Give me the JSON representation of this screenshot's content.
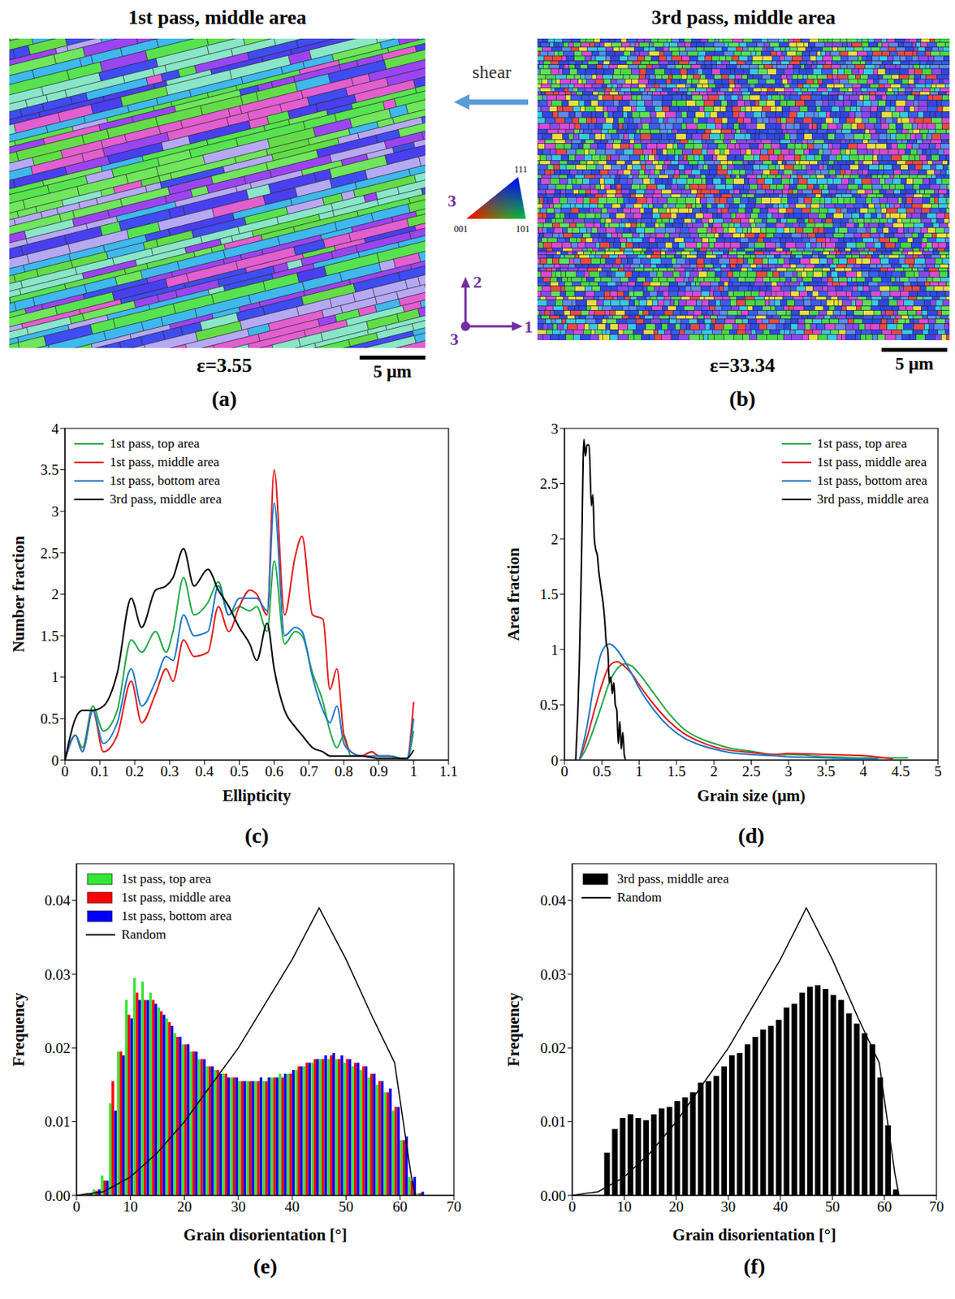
{
  "figure": {
    "maps": [
      {
        "title": "1st pass, middle area",
        "strain": "ε=3.55",
        "scale_bar": "5 μm",
        "panel": "(a)"
      },
      {
        "title": "3rd pass, middle area",
        "strain": "ε=33.34",
        "scale_bar": "5 μm",
        "panel": "(b)"
      }
    ],
    "shear": "shear",
    "ipf_key": {
      "axis": "3",
      "corners": [
        "001",
        "101",
        "111"
      ]
    },
    "axes_key": {
      "x": "1",
      "y": "2",
      "z": "3"
    }
  },
  "chart_data": [
    {
      "type": "line",
      "panel": "(c)",
      "x_label": "Ellipticity",
      "y_label": "Number fraction",
      "legend": "upper left",
      "x": [
        0,
        0.03,
        0.05,
        0.08,
        0.11,
        0.15,
        0.19,
        0.22,
        0.26,
        0.29,
        0.31,
        0.34,
        0.37,
        0.41,
        0.44,
        0.47,
        0.5,
        0.53,
        0.55,
        0.58,
        0.6,
        0.63,
        0.66,
        0.68,
        0.71,
        0.74,
        0.76,
        0.78,
        0.8,
        0.82,
        0.85,
        0.88,
        0.9,
        0.93,
        0.96,
        0.98,
        1.0
      ],
      "xlim": [
        0,
        1.1
      ],
      "xticks": [
        0,
        0.1,
        0.2,
        0.3,
        0.4,
        0.5,
        0.6,
        0.7,
        0.8,
        0.9,
        1,
        1.1
      ],
      "ylim": [
        0,
        4
      ],
      "yticks": [
        0,
        0.5,
        1,
        1.5,
        2,
        2.5,
        3,
        3.5,
        4
      ],
      "series": [
        {
          "name": "1st pass, top area",
          "color": "#22a84a",
          "values": [
            0,
            0.3,
            0.15,
            0.65,
            0.35,
            0.6,
            1.45,
            1.3,
            1.55,
            1.3,
            1.55,
            2.2,
            1.75,
            1.9,
            2.15,
            1.75,
            1.85,
            1.8,
            1.85,
            1.55,
            2.4,
            1.4,
            1.55,
            1.5,
            1.05,
            0.7,
            0.35,
            0.15,
            0.3,
            0.05,
            0.05,
            0.1,
            0.05,
            0.05,
            0.02,
            0,
            0.35
          ]
        },
        {
          "name": "1st pass, middle area",
          "color": "#e41a1c",
          "values": [
            0,
            0.3,
            0.1,
            0.6,
            0.1,
            0.3,
            0.95,
            0.45,
            0.8,
            1.1,
            0.95,
            1.45,
            1.25,
            1.3,
            1.85,
            1.55,
            1.85,
            2.05,
            2.0,
            1.75,
            3.5,
            1.75,
            2.45,
            2.7,
            1.75,
            1.7,
            0.85,
            1.1,
            0.3,
            0.1,
            0.05,
            0.1,
            0.05,
            0.05,
            0.02,
            0,
            0.7
          ]
        },
        {
          "name": "1st pass, bottom area",
          "color": "#1f78c8",
          "values": [
            0,
            0.3,
            0.1,
            0.6,
            0.2,
            0.45,
            1.1,
            0.65,
            0.95,
            1.25,
            1.2,
            1.75,
            1.5,
            1.55,
            2.1,
            1.75,
            1.95,
            1.95,
            1.95,
            1.8,
            3.1,
            1.5,
            1.6,
            1.55,
            1.0,
            0.6,
            0.45,
            0.65,
            0.2,
            0.1,
            0.05,
            0.05,
            0.05,
            0.05,
            0.02,
            0,
            0.5
          ]
        },
        {
          "name": "3rd pass, middle area",
          "color": "#000000",
          "values": [
            0,
            0.5,
            0.6,
            0.6,
            0.65,
            1.05,
            1.95,
            1.6,
            2.05,
            2.1,
            2.2,
            2.55,
            2.1,
            2.3,
            2.05,
            1.85,
            1.6,
            1.4,
            1.2,
            1.65,
            1.1,
            0.6,
            0.4,
            0.3,
            0.15,
            0.1,
            0.05,
            0.05,
            0.05,
            0.05,
            0.05,
            0.03,
            0.02,
            0.02,
            0.02,
            0.02,
            0.12
          ]
        }
      ]
    },
    {
      "type": "line",
      "panel": "(d)",
      "x_label": "Grain size (μm)",
      "y_label": "Area fraction",
      "legend": "upper right",
      "xlim": [
        0,
        5
      ],
      "xticks": [
        0,
        0.5,
        1,
        1.5,
        2,
        2.5,
        3,
        3.5,
        4,
        4.5,
        5
      ],
      "ylim": [
        0,
        3
      ],
      "yticks": [
        0,
        0.5,
        1,
        1.5,
        2,
        2.5,
        3
      ],
      "series": [
        {
          "name": "1st pass, top area",
          "color": "#22a84a",
          "x": [
            0.2,
            0.3,
            0.4,
            0.5,
            0.6,
            0.7,
            0.8,
            0.9,
            1.0,
            1.2,
            1.4,
            1.6,
            1.8,
            2.0,
            2.2,
            2.5,
            2.8,
            3.0,
            3.5,
            4.0,
            4.6
          ],
          "values": [
            0,
            0.12,
            0.3,
            0.5,
            0.7,
            0.82,
            0.87,
            0.85,
            0.78,
            0.6,
            0.42,
            0.28,
            0.2,
            0.15,
            0.11,
            0.08,
            0.05,
            0.05,
            0.03,
            0.02,
            0.02
          ]
        },
        {
          "name": "1st pass, middle area",
          "color": "#e41a1c",
          "x": [
            0.2,
            0.3,
            0.4,
            0.5,
            0.6,
            0.7,
            0.8,
            0.9,
            1.0,
            1.2,
            1.4,
            1.6,
            1.8,
            2.0,
            2.2,
            2.5,
            2.8,
            3.0,
            3.5,
            4.0,
            4.4
          ],
          "values": [
            0,
            0.2,
            0.45,
            0.68,
            0.85,
            0.89,
            0.85,
            0.78,
            0.68,
            0.5,
            0.35,
            0.24,
            0.17,
            0.12,
            0.09,
            0.07,
            0.05,
            0.06,
            0.05,
            0.04,
            0.01
          ]
        },
        {
          "name": "1st pass, bottom area",
          "color": "#1f78c8",
          "x": [
            0.2,
            0.3,
            0.4,
            0.5,
            0.6,
            0.7,
            0.8,
            0.9,
            1.0,
            1.2,
            1.4,
            1.6,
            1.8,
            2.0,
            2.2,
            2.5,
            2.8,
            3.0,
            3.5,
            4.0,
            4.2
          ],
          "values": [
            0,
            0.3,
            0.7,
            0.98,
            1.05,
            1.0,
            0.9,
            0.78,
            0.65,
            0.45,
            0.3,
            0.2,
            0.14,
            0.1,
            0.07,
            0.05,
            0.04,
            0.03,
            0.02,
            0.01,
            0.01
          ]
        },
        {
          "name": "3rd pass, middle area",
          "color": "#000000",
          "x": [
            0.15,
            0.2,
            0.23,
            0.26,
            0.28,
            0.3,
            0.33,
            0.36,
            0.38,
            0.4,
            0.42,
            0.44,
            0.46,
            0.48,
            0.5,
            0.52,
            0.54,
            0.56,
            0.58,
            0.6,
            0.62,
            0.64,
            0.66,
            0.68,
            0.7,
            0.72,
            0.74,
            0.76,
            0.78,
            0.8,
            0.82
          ],
          "values": [
            0,
            0.9,
            1.9,
            2.9,
            2.75,
            2.85,
            2.85,
            2.3,
            2.4,
            2.0,
            1.9,
            1.85,
            1.7,
            1.6,
            1.5,
            1.4,
            1.25,
            1.05,
            1.0,
            0.7,
            0.75,
            0.6,
            0.7,
            0.5,
            0.45,
            0.15,
            0.35,
            0.1,
            0.25,
            0.05,
            0
          ]
        }
      ]
    },
    {
      "type": "bar",
      "panel": "(e)",
      "x_label": "Grain disorientation [°]",
      "y_label": "Frequency",
      "legend": "upper left",
      "bins": [
        0,
        1.5,
        3,
        4.5,
        6,
        7.5,
        9,
        10.5,
        12,
        13.5,
        15,
        16.5,
        18,
        19.5,
        21,
        22.5,
        24,
        25.5,
        27,
        28.5,
        30,
        31.5,
        33,
        34.5,
        36,
        37.5,
        39,
        40.5,
        42,
        43.5,
        45,
        46.5,
        48,
        49.5,
        51,
        52.5,
        54,
        55.5,
        57,
        58.5,
        60,
        61.5,
        63,
        64.5
      ],
      "xlim": [
        0,
        70
      ],
      "xticks": [
        0,
        10,
        20,
        30,
        40,
        50,
        60,
        70
      ],
      "ylim": [
        0,
        0.045
      ],
      "yticks": [
        {
          "value": 0,
          "label": "0.00"
        },
        0.01,
        0.02,
        0.03,
        0.04
      ],
      "series": [
        {
          "name": "1st pass, top area",
          "color": "#33e633",
          "values": [
            0,
            0.0003,
            0.0008,
            0.0027,
            0.0125,
            0.0195,
            0.0265,
            0.0295,
            0.029,
            0.0275,
            0.0255,
            0.024,
            0.022,
            0.0205,
            0.0195,
            0.0185,
            0.0175,
            0.017,
            0.0165,
            0.016,
            0.0155,
            0.0155,
            0.0155,
            0.0155,
            0.016,
            0.0165,
            0.0165,
            0.017,
            0.0175,
            0.018,
            0.0185,
            0.0185,
            0.0185,
            0.018,
            0.0175,
            0.017,
            0.016,
            0.015,
            0.014,
            0.0115,
            0.0075,
            0.0025,
            0.0003
          ]
        },
        {
          "name": "1st pass, middle area",
          "color": "#ff0000",
          "values": [
            0,
            0.0003,
            0.0006,
            0.002,
            0.0155,
            0.0195,
            0.0245,
            0.0275,
            0.0265,
            0.0265,
            0.025,
            0.0235,
            0.0215,
            0.0205,
            0.0195,
            0.0185,
            0.0175,
            0.017,
            0.0165,
            0.016,
            0.0155,
            0.0155,
            0.0155,
            0.0155,
            0.016,
            0.016,
            0.0165,
            0.0175,
            0.018,
            0.0185,
            0.0185,
            0.019,
            0.0185,
            0.0185,
            0.018,
            0.0175,
            0.0165,
            0.0155,
            0.014,
            0.012,
            0.0075,
            0.002,
            0.0003
          ]
        },
        {
          "name": "1st pass, bottom area",
          "color": "#0000ff",
          "values": [
            0,
            0.0003,
            0.0008,
            0.002,
            0.0115,
            0.019,
            0.024,
            0.0265,
            0.0265,
            0.026,
            0.0245,
            0.023,
            0.0215,
            0.0205,
            0.0195,
            0.0185,
            0.0175,
            0.0165,
            0.016,
            0.016,
            0.0155,
            0.0155,
            0.016,
            0.016,
            0.016,
            0.0165,
            0.017,
            0.0175,
            0.018,
            0.0185,
            0.019,
            0.0193,
            0.019,
            0.0185,
            0.018,
            0.0175,
            0.0165,
            0.0155,
            0.0145,
            0.012,
            0.008,
            0.0025,
            0.0005
          ]
        },
        {
          "name": "Random",
          "type": "line",
          "color": "#000000",
          "x": [
            0,
            5,
            10,
            15,
            20,
            25,
            30,
            35,
            40,
            45,
            50,
            55,
            59,
            60,
            61,
            62,
            62.8
          ],
          "values": [
            0,
            0.0005,
            0.0025,
            0.0058,
            0.01,
            0.015,
            0.02,
            0.026,
            0.032,
            0.039,
            0.032,
            0.024,
            0.018,
            0.013,
            0.008,
            0.003,
            0
          ]
        }
      ]
    },
    {
      "type": "bar",
      "panel": "(f)",
      "x_label": "Grain disorientation [°]",
      "y_label": "Frequency",
      "legend": "upper left",
      "bins": [
        0,
        1.5,
        3,
        4.5,
        6,
        7.5,
        9,
        10.5,
        12,
        13.5,
        15,
        16.5,
        18,
        19.5,
        21,
        22.5,
        24,
        25.5,
        27,
        28.5,
        30,
        31.5,
        33,
        34.5,
        36,
        37.5,
        39,
        40.5,
        42,
        43.5,
        45,
        46.5,
        48,
        49.5,
        51,
        52.5,
        54,
        55.5,
        57,
        58.5,
        60,
        61.5,
        63,
        64.5
      ],
      "xlim": [
        0,
        70
      ],
      "xticks": [
        0,
        10,
        20,
        30,
        40,
        50,
        60,
        70
      ],
      "ylim": [
        0,
        0.045
      ],
      "yticks": [
        {
          "value": 0,
          "label": "0.00"
        },
        0.01,
        0.02,
        0.03,
        0.04
      ],
      "series": [
        {
          "name": "3rd pass, middle area",
          "color": "#000000",
          "values": [
            0,
            0,
            0,
            0,
            0.0058,
            0.009,
            0.0105,
            0.011,
            0.0105,
            0.0102,
            0.011,
            0.0118,
            0.012,
            0.0128,
            0.0133,
            0.014,
            0.0153,
            0.0155,
            0.0162,
            0.0175,
            0.019,
            0.0193,
            0.0205,
            0.0215,
            0.0225,
            0.023,
            0.0238,
            0.0255,
            0.026,
            0.0275,
            0.0283,
            0.0285,
            0.028,
            0.0272,
            0.0265,
            0.0247,
            0.0233,
            0.022,
            0.0205,
            0.016,
            0.0095,
            0.0008,
            0
          ]
        },
        {
          "name": "Random",
          "type": "line",
          "color": "#000000",
          "x": [
            0,
            5,
            10,
            15,
            20,
            25,
            30,
            35,
            40,
            45,
            50,
            55,
            59,
            60,
            61,
            62,
            62.8
          ],
          "values": [
            0,
            0.0005,
            0.0025,
            0.0058,
            0.01,
            0.015,
            0.02,
            0.026,
            0.032,
            0.039,
            0.032,
            0.024,
            0.018,
            0.013,
            0.008,
            0.003,
            0
          ]
        }
      ]
    }
  ]
}
